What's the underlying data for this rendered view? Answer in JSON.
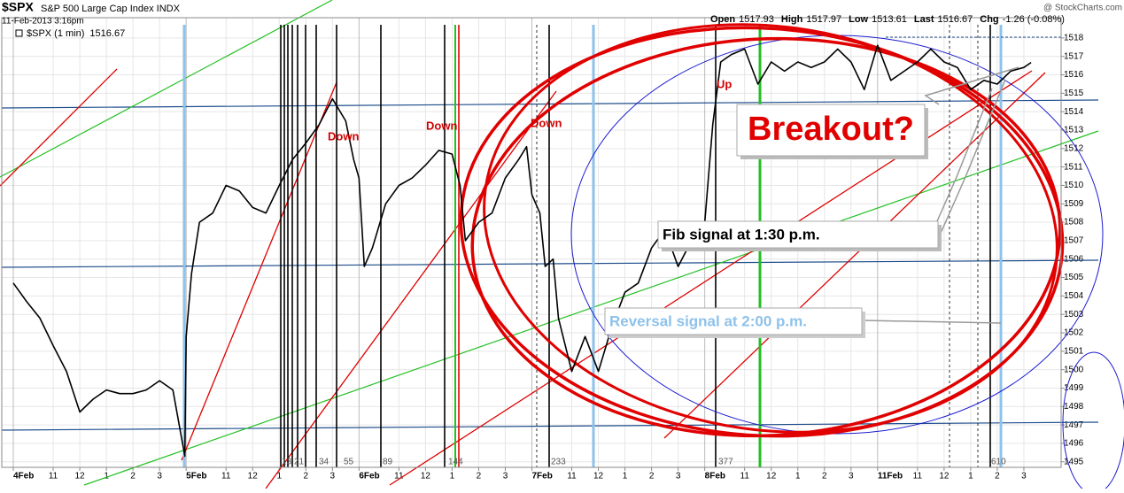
{
  "chart_data": {
    "type": "line",
    "symbol": "$SPX",
    "title": "S&P 500 Large Cap Index INDX",
    "date": "11-Feb-2013 3:16pm",
    "source": "@ StockCharts.com",
    "quote": [
      {
        "label": "Open",
        "value": "1517.93"
      },
      {
        "label": "High",
        "value": "1517.97"
      },
      {
        "label": "Low",
        "value": "1513.61"
      },
      {
        "label": "Last",
        "value": "1516.67"
      },
      {
        "label": "Chg",
        "value": "-1.26 (-0.08%)"
      }
    ],
    "x": [
      0,
      0.5,
      1,
      1.5,
      2,
      2.5,
      3,
      3.5,
      4,
      4.5,
      5,
      5.5,
      6,
      6.3,
      6.45,
      6.5,
      6.7,
      7,
      7.5,
      8,
      8.5,
      9,
      9.5,
      10,
      10.5,
      11,
      11.5,
      12,
      12.5,
      12.8,
      13,
      13.2,
      13.5,
      14,
      14.5,
      15,
      15.5,
      16,
      16.5,
      16.8,
      17,
      17.5,
      18,
      18.5,
      19,
      19.3,
      19.5,
      19.8,
      20,
      20.3,
      20.5,
      21,
      21.5,
      22,
      22.5,
      23,
      23.5,
      24,
      24.5,
      25,
      25.5,
      26,
      26.3,
      26.6,
      27,
      27.5,
      28,
      28.5,
      29,
      29.5,
      30,
      30.5,
      31,
      31.5,
      32,
      32.5,
      33,
      33.5,
      34,
      34.5,
      35,
      35.5,
      36,
      36.5,
      37,
      37.5,
      38,
      38.27
    ],
    "series": [
      {
        "name": "$SPX (1 min)",
        "color": "#000000",
        "last": 1516.67,
        "values": [
          1504.7,
          1503.7,
          1502.8,
          1501.3,
          1499.9,
          1497.7,
          1498.4,
          1498.9,
          1498.7,
          1498.7,
          1498.9,
          1499.4,
          1498.9,
          1496.5,
          1495.3,
          1501.8,
          1505.2,
          1508,
          1508.5,
          1510,
          1509.7,
          1508.8,
          1508.5,
          1510,
          1511.4,
          1512.3,
          1513.3,
          1514.7,
          1513.5,
          1511.4,
          1510.4,
          1505.6,
          1506.6,
          1509,
          1510,
          1510.4,
          1511.1,
          1511.9,
          1511.7,
          1510,
          1507,
          1508,
          1508.5,
          1510.4,
          1511.4,
          1512.1,
          1509.5,
          1508.5,
          1505.6,
          1506,
          1502.8,
          1499.9,
          1501.8,
          1499.9,
          1502.3,
          1504.2,
          1504.7,
          1506.6,
          1507.6,
          1505.6,
          1507,
          1508,
          1513.3,
          1516.7,
          1517.1,
          1517.4,
          1515.5,
          1516.7,
          1516.2,
          1516.7,
          1516.4,
          1516.7,
          1517.4,
          1516.7,
          1515.2,
          1517.6,
          1515.7,
          1516.2,
          1516.7,
          1517.4,
          1516.7,
          1516.4,
          1515.2,
          1515.7,
          1515.5,
          1516.2,
          1516.4,
          1516.67
        ]
      }
    ],
    "xlim": [
      -0.5,
      39.4
    ],
    "ylim": [
      1494.7,
      1519.1
    ],
    "xticks": [
      {
        "value": 0,
        "label": "4Feb"
      },
      {
        "value": 1.5,
        "label": "11"
      },
      {
        "value": 2.5,
        "label": "12"
      },
      {
        "value": 3.5,
        "label": "1"
      },
      {
        "value": 4.5,
        "label": "2"
      },
      {
        "value": 5.5,
        "label": "3"
      },
      {
        "value": 6.5,
        "label": "5Feb"
      },
      {
        "value": 8,
        "label": "11"
      },
      {
        "value": 9,
        "label": "12"
      },
      {
        "value": 10,
        "label": "1"
      },
      {
        "value": 11,
        "label": "2"
      },
      {
        "value": 12,
        "label": "3"
      },
      {
        "value": 13,
        "label": "6Feb"
      },
      {
        "value": 14.5,
        "label": "11"
      },
      {
        "value": 15.5,
        "label": "12"
      },
      {
        "value": 16.5,
        "label": "1"
      },
      {
        "value": 17.5,
        "label": "2"
      },
      {
        "value": 18.5,
        "label": "3"
      },
      {
        "value": 19.5,
        "label": "7Feb"
      },
      {
        "value": 21,
        "label": "11"
      },
      {
        "value": 22,
        "label": "12"
      },
      {
        "value": 23,
        "label": "1"
      },
      {
        "value": 24,
        "label": "2"
      },
      {
        "value": 25,
        "label": "3"
      },
      {
        "value": 26,
        "label": "8Feb"
      },
      {
        "value": 27.5,
        "label": "11"
      },
      {
        "value": 28.5,
        "label": "12"
      },
      {
        "value": 29.5,
        "label": "1"
      },
      {
        "value": 30.5,
        "label": "2"
      },
      {
        "value": 31.5,
        "label": "3"
      },
      {
        "value": 32.5,
        "label": "11Feb"
      },
      {
        "value": 34,
        "label": "11"
      },
      {
        "value": 35,
        "label": "12"
      },
      {
        "value": 36,
        "label": "1"
      },
      {
        "value": 37,
        "label": "2"
      },
      {
        "value": 38,
        "label": "3"
      }
    ],
    "yticks": [
      1495,
      1496,
      1497,
      1498,
      1499,
      1500,
      1501,
      1502,
      1503,
      1504,
      1505,
      1506,
      1507,
      1508,
      1509,
      1510,
      1511,
      1512,
      1513,
      1514,
      1515,
      1516,
      1517,
      1518
    ],
    "grid": true,
    "annotations": [
      "Down",
      "Down",
      "Down",
      "Up",
      "Breakout?",
      "Fib signal at 1:30 p.m.",
      "Reversal signal at 2:00 p.m."
    ],
    "fib_labels": [
      13,
      21,
      34,
      55,
      89,
      144,
      233,
      377,
      610
    ]
  }
}
